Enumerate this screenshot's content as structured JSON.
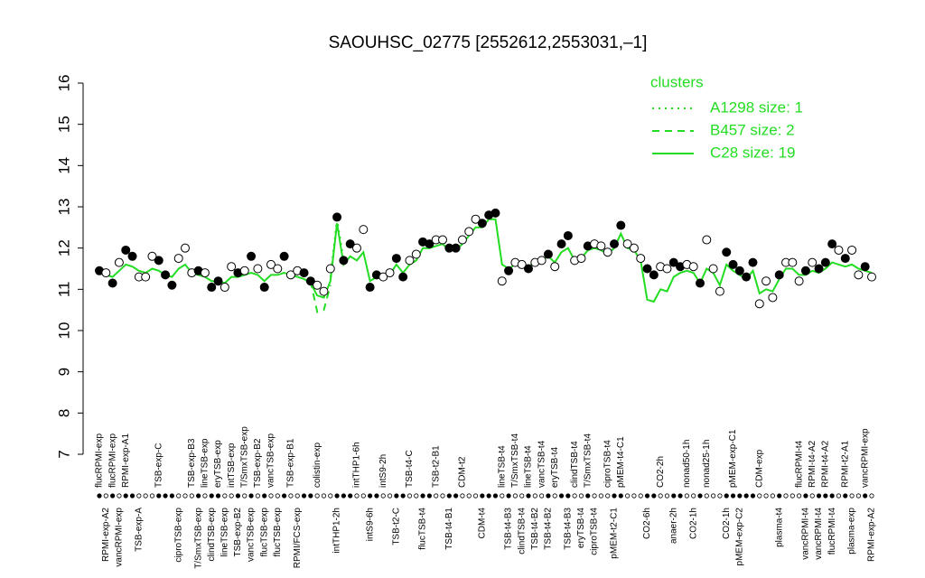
{
  "chart_data": {
    "type": "expression",
    "title": "SAOUHSC_02775 [2552612,2553031,–1]",
    "ylim": [
      7,
      16
    ],
    "yticks": [
      7,
      8,
      9,
      10,
      11,
      12,
      13,
      14,
      15,
      16
    ],
    "legend_title": "clusters",
    "legend_position": "top-right",
    "categories": [
      "flucRPMI-exp",
      "RPMI-exp-A2",
      "flucRPMI-exp",
      "vancRPMI-exp",
      "RPMI-exp-A1",
      null,
      "TSB-exp-A",
      null,
      null,
      "TSB-exp-C",
      null,
      null,
      "ciproTSB-exp",
      null,
      "TSB-exp-B3",
      "T/SmxTSB-exp",
      "lineTSB-exp",
      "clindTSB-exp",
      "eryTSB-exp",
      "lineTSB-exp",
      "intTSB-exp",
      "TSB-exp-B2",
      "T/SmxTSB-exp",
      "vancTSB-exp",
      "TSB-exp-B2",
      "flucTSB-exp",
      "vancTSB-exp",
      "flucTSB-exp",
      null,
      "TSB-exp-B1",
      "RPMI/FCS-exp",
      null,
      null,
      "colistin-exp",
      null,
      null,
      "intTHP1-2h",
      null,
      null,
      "intTHP1-6h",
      null,
      "intS9-6h",
      null,
      "intS9-2h",
      null,
      "TSB-t2-C",
      null,
      "TSB-t4-C",
      null,
      "flucTSB-t4",
      null,
      "TSB-t2-B1",
      null,
      "TSB-t4-B1",
      null,
      "CDM-t2",
      null,
      null,
      "CDM-t4",
      null,
      null,
      "lineTSB-t4",
      "TSB-t4-B3",
      "T/SmxTSB-t4",
      "clindTSB-t4",
      "lineTSB-t4",
      "TSB-t4-B2",
      "vancTSB-t4",
      "TSB-t4-B2",
      "eryTSB-t4",
      null,
      "TSB-t4-B3",
      "clindTSB-t4",
      "eryTSB-t4",
      "T/SmxTSB-t4",
      "ciproTSB-t4",
      null,
      "ciproTSB-t4",
      "pMEM-t2-C1",
      "pMEM-t4-C1",
      null,
      null,
      null,
      "CO2-6h",
      null,
      "CO2-2h",
      null,
      "anaer-2h",
      null,
      "nonad50-1h",
      "CO2-1h",
      null,
      "nonad25-1h",
      null,
      null,
      "CO2-1h",
      "pMEM-exp-C1",
      "pMEM-exp-C2",
      null,
      null,
      "CDM-exp",
      null,
      null,
      "plasma-t4",
      null,
      null,
      "flucRPMI-t4",
      "vancRPMI-t4",
      "RPMI-t4-A2",
      "vancRPMI-t4",
      "RPMI-t4-A2",
      "flucRPMI-t4",
      null,
      "RPMI-t2-A1",
      "plasma-exp",
      null,
      "vancRPMI-exp",
      "RPMI-exp-A2"
    ],
    "values": [
      11.45,
      11.4,
      11.15,
      11.65,
      11.95,
      11.8,
      11.3,
      11.3,
      11.8,
      11.7,
      11.35,
      11.1,
      11.75,
      12.0,
      11.4,
      11.45,
      11.4,
      11.05,
      11.2,
      11.05,
      11.55,
      11.4,
      11.45,
      11.8,
      11.5,
      11.05,
      11.6,
      11.5,
      11.8,
      11.35,
      11.45,
      11.4,
      11.2,
      11.1,
      10.95,
      11.5,
      12.75,
      11.7,
      12.1,
      12.0,
      12.45,
      11.05,
      11.35,
      11.3,
      11.4,
      11.75,
      11.3,
      11.7,
      11.85,
      12.15,
      12.1,
      12.2,
      12.2,
      12.0,
      12.0,
      12.2,
      12.4,
      12.7,
      12.6,
      12.8,
      12.85,
      11.2,
      11.45,
      11.65,
      11.6,
      11.5,
      11.65,
      11.7,
      11.85,
      11.55,
      12.1,
      12.3,
      11.7,
      11.75,
      12.05,
      12.1,
      12.05,
      11.9,
      12.1,
      12.55,
      12.1,
      12.0,
      11.75,
      11.5,
      11.35,
      11.55,
      11.5,
      11.65,
      11.55,
      11.6,
      11.55,
      11.15,
      12.2,
      11.5,
      10.95,
      11.9,
      11.6,
      11.45,
      11.3,
      11.65,
      10.65,
      11.2,
      10.8,
      11.35,
      11.65,
      11.65,
      11.2,
      11.45,
      11.65,
      11.5,
      11.65,
      12.1,
      11.95,
      11.75,
      11.95,
      11.35,
      11.55,
      11.3
    ],
    "point_colors": [
      "black",
      "white",
      "black",
      "white",
      "black",
      "black",
      "white",
      "white",
      "white",
      "black",
      "black",
      "black",
      "white",
      "white",
      "white",
      "black",
      "white",
      "black",
      "black",
      "white",
      "white",
      "black",
      "white",
      "black",
      "white",
      "black",
      "white",
      "white",
      "black",
      "white",
      "white",
      "black",
      "black",
      "white",
      "white",
      "white",
      "black",
      "black",
      "black",
      "white",
      "white",
      "black",
      "black",
      "white",
      "white",
      "black",
      "black",
      "white",
      "white",
      "black",
      "black",
      "white",
      "white",
      "black",
      "black",
      "white",
      "white",
      "white",
      "black",
      "black",
      "black",
      "white",
      "black",
      "white",
      "white",
      "black",
      "white",
      "white",
      "black",
      "white",
      "black",
      "black",
      "white",
      "white",
      "black",
      "white",
      "white",
      "white",
      "black",
      "black",
      "white",
      "white",
      "white",
      "black",
      "black",
      "white",
      "white",
      "black",
      "black",
      "white",
      "white",
      "black",
      "white",
      "white",
      "white",
      "black",
      "black",
      "black",
      "black",
      "black",
      "white",
      "white",
      "white",
      "black",
      "white",
      "white",
      "white",
      "black",
      "white",
      "black",
      "black",
      "black",
      "white",
      "black",
      "white",
      "white",
      "black",
      "white"
    ],
    "series": [
      {
        "name": "A1298 size: 1",
        "color": "#22dd22",
        "dash": "dotted",
        "values": [
          null,
          null,
          null,
          null,
          null,
          null,
          null,
          null,
          null,
          null,
          null,
          null,
          null,
          null,
          null,
          null,
          null,
          null,
          null,
          null,
          null,
          null,
          null,
          null,
          null,
          null,
          null,
          null,
          null,
          null,
          null,
          null,
          null,
          null,
          null,
          11.3,
          12.7,
          11.7,
          null,
          null,
          null,
          null,
          null,
          null,
          null,
          null,
          null,
          null,
          null,
          null,
          null,
          null,
          null,
          null,
          null,
          null,
          null,
          null,
          null,
          null,
          null,
          null,
          null,
          null,
          null,
          null,
          null,
          null,
          null,
          null,
          null,
          null,
          null,
          null,
          null,
          null,
          null,
          null,
          null,
          null,
          null,
          null,
          null,
          null,
          null,
          null,
          null,
          null,
          null,
          null,
          null,
          null,
          null,
          null,
          null,
          null,
          null,
          null,
          null,
          null,
          null,
          null,
          null,
          null,
          null,
          null,
          null,
          null,
          null,
          null,
          null,
          null,
          null,
          null,
          null,
          null,
          null,
          null
        ]
      },
      {
        "name": "B457 size: 2",
        "color": "#22dd22",
        "dash": "dashed",
        "values": [
          null,
          null,
          null,
          null,
          null,
          null,
          null,
          null,
          null,
          null,
          null,
          null,
          null,
          null,
          null,
          null,
          null,
          null,
          null,
          null,
          null,
          null,
          null,
          null,
          null,
          null,
          null,
          null,
          null,
          null,
          null,
          null,
          11.2,
          10.45,
          10.5,
          11.1,
          null,
          null,
          null,
          null,
          null,
          null,
          null,
          null,
          null,
          null,
          null,
          null,
          null,
          null,
          null,
          null,
          null,
          null,
          null,
          null,
          null,
          null,
          null,
          null,
          null,
          null,
          null,
          null,
          null,
          null,
          null,
          null,
          null,
          null,
          null,
          null,
          null,
          null,
          null,
          null,
          null,
          null,
          null,
          null,
          null,
          null,
          null,
          null,
          null,
          null,
          null,
          null,
          null,
          null,
          null,
          null,
          null,
          null,
          null,
          null,
          null,
          null,
          null,
          null,
          null,
          null,
          null,
          null,
          null,
          null,
          null,
          null,
          null,
          null,
          null,
          null,
          null,
          null,
          null,
          null,
          null,
          null
        ]
      },
      {
        "name": "C28 size: 19",
        "color": "#22dd22",
        "dash": "solid",
        "values": [
          11.4,
          11.35,
          11.3,
          11.45,
          11.6,
          11.55,
          11.45,
          11.4,
          11.5,
          11.45,
          11.35,
          11.3,
          11.5,
          11.6,
          11.4,
          11.35,
          11.3,
          11.2,
          11.2,
          11.15,
          11.3,
          11.3,
          11.35,
          11.4,
          11.35,
          11.2,
          11.35,
          11.35,
          11.4,
          11.35,
          11.3,
          11.25,
          11.15,
          10.85,
          10.8,
          11.2,
          12.6,
          11.6,
          11.8,
          11.7,
          11.9,
          11.2,
          11.3,
          11.3,
          11.35,
          11.6,
          11.4,
          11.6,
          11.7,
          12.0,
          12.0,
          12.05,
          12.1,
          11.95,
          11.95,
          12.1,
          12.3,
          12.5,
          12.5,
          12.7,
          12.7,
          11.6,
          11.5,
          11.6,
          11.6,
          11.55,
          11.65,
          11.7,
          11.8,
          11.65,
          11.9,
          12.0,
          11.7,
          11.75,
          11.95,
          12.0,
          11.95,
          11.85,
          12.0,
          12.35,
          12.0,
          11.95,
          11.7,
          10.75,
          10.7,
          11.0,
          10.95,
          11.3,
          11.4,
          11.45,
          11.4,
          11.15,
          11.5,
          11.4,
          11.1,
          11.6,
          11.45,
          11.35,
          11.25,
          11.45,
          10.9,
          11.0,
          10.95,
          11.25,
          11.5,
          11.5,
          11.35,
          11.35,
          11.45,
          11.4,
          11.5,
          11.65,
          11.6,
          11.55,
          11.6,
          11.5,
          11.45,
          11.4
        ]
      }
    ]
  }
}
